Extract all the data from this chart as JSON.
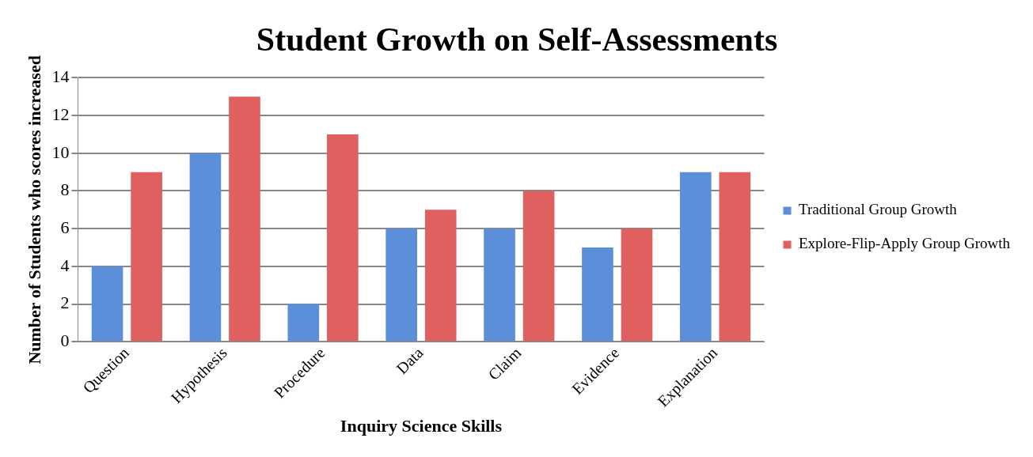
{
  "chart_data": {
    "type": "bar",
    "title": "Student Growth on Self-Assessments",
    "xlabel": "Inquiry Science Skills",
    "ylabel": "Number of Students who scores increased",
    "categories": [
      "Question",
      "Hypothesis",
      "Procedure",
      "Data",
      "Claim",
      "Evidence",
      "Explanation"
    ],
    "series": [
      {
        "name": "Traditional Group Growth",
        "color": "#5b8fd9",
        "values": [
          4,
          10,
          2,
          6,
          6,
          5,
          9
        ]
      },
      {
        "name": "Explore-Flip-Apply Group Growth",
        "color": "#e0605f",
        "values": [
          9,
          13,
          11,
          7,
          8,
          6,
          9
        ]
      }
    ],
    "ylim": [
      0,
      14
    ],
    "yticks": [
      0,
      2,
      4,
      6,
      8,
      10,
      12,
      14
    ],
    "grid": "y",
    "legend": "right"
  }
}
